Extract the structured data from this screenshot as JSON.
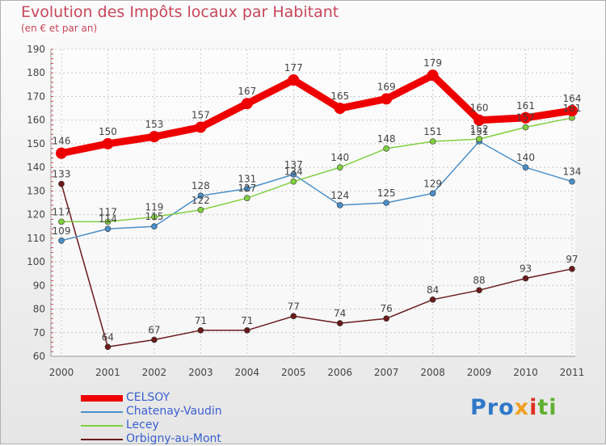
{
  "chart_data": {
    "type": "line",
    "title": "Evolution des Impôts locaux par Habitant",
    "subtitle": "(en € et par an)",
    "categories": [
      "2000",
      "2001",
      "2002",
      "2003",
      "2004",
      "2005",
      "2006",
      "2007",
      "2008",
      "2009",
      "2010",
      "2011"
    ],
    "ylim": [
      60,
      190
    ],
    "yticks": [
      60,
      70,
      80,
      90,
      100,
      110,
      120,
      130,
      140,
      150,
      160,
      170,
      180,
      190
    ],
    "grid": true,
    "series": [
      {
        "name": "CELSOY",
        "color": "#ee0000",
        "values": [
          146,
          150,
          153,
          157,
          167,
          177,
          165,
          169,
          179,
          160,
          161,
          164
        ]
      },
      {
        "name": "Chatenay-Vaudin",
        "color": "#4a8fc8",
        "values": [
          109,
          114,
          115,
          128,
          131,
          137,
          124,
          125,
          129,
          151,
          140,
          134
        ]
      },
      {
        "name": "Lecey",
        "color": "#80d040",
        "values": [
          117,
          117,
          119,
          122,
          127,
          134,
          140,
          148,
          151,
          152,
          157,
          161
        ]
      },
      {
        "name": "Orbigny-au-Mont",
        "color": "#6b1a1a",
        "values": [
          133,
          64,
          67,
          71,
          71,
          77,
          74,
          76,
          84,
          88,
          93,
          97
        ]
      }
    ]
  },
  "brand": {
    "p1": "Pro",
    "p2": "x",
    "p3": "i",
    "p4": "ti"
  }
}
